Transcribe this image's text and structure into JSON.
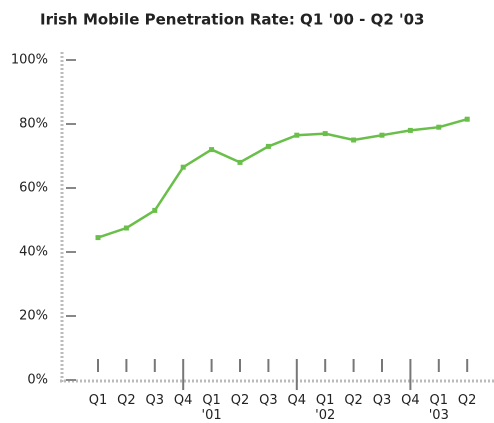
{
  "chart_data": {
    "type": "line",
    "title": "Irish Mobile Penetration Rate: Q1 '00 - Q2 '03",
    "categories": [
      "Q1",
      "Q2",
      "Q3",
      "Q4",
      "Q1\n'01",
      "Q2",
      "Q3",
      "Q4",
      "Q1\n'02",
      "Q2",
      "Q3",
      "Q4",
      "Q1\n'03",
      "Q2"
    ],
    "series": [
      {
        "name": "Penetration rate",
        "color": "#6abf4b",
        "values": [
          44.5,
          47.5,
          53,
          66.5,
          72,
          68,
          73,
          76.5,
          77,
          75,
          76.5,
          78,
          79,
          81.5
        ]
      }
    ],
    "ylim": [
      0,
      100
    ],
    "yticks": [
      {
        "value": 0,
        "label": "0%"
      },
      {
        "value": 20,
        "label": "20%"
      },
      {
        "value": 40,
        "label": "40%"
      },
      {
        "value": 60,
        "label": "60%"
      },
      {
        "value": 80,
        "label": "80%"
      },
      {
        "value": 100,
        "label": "100%"
      }
    ]
  }
}
